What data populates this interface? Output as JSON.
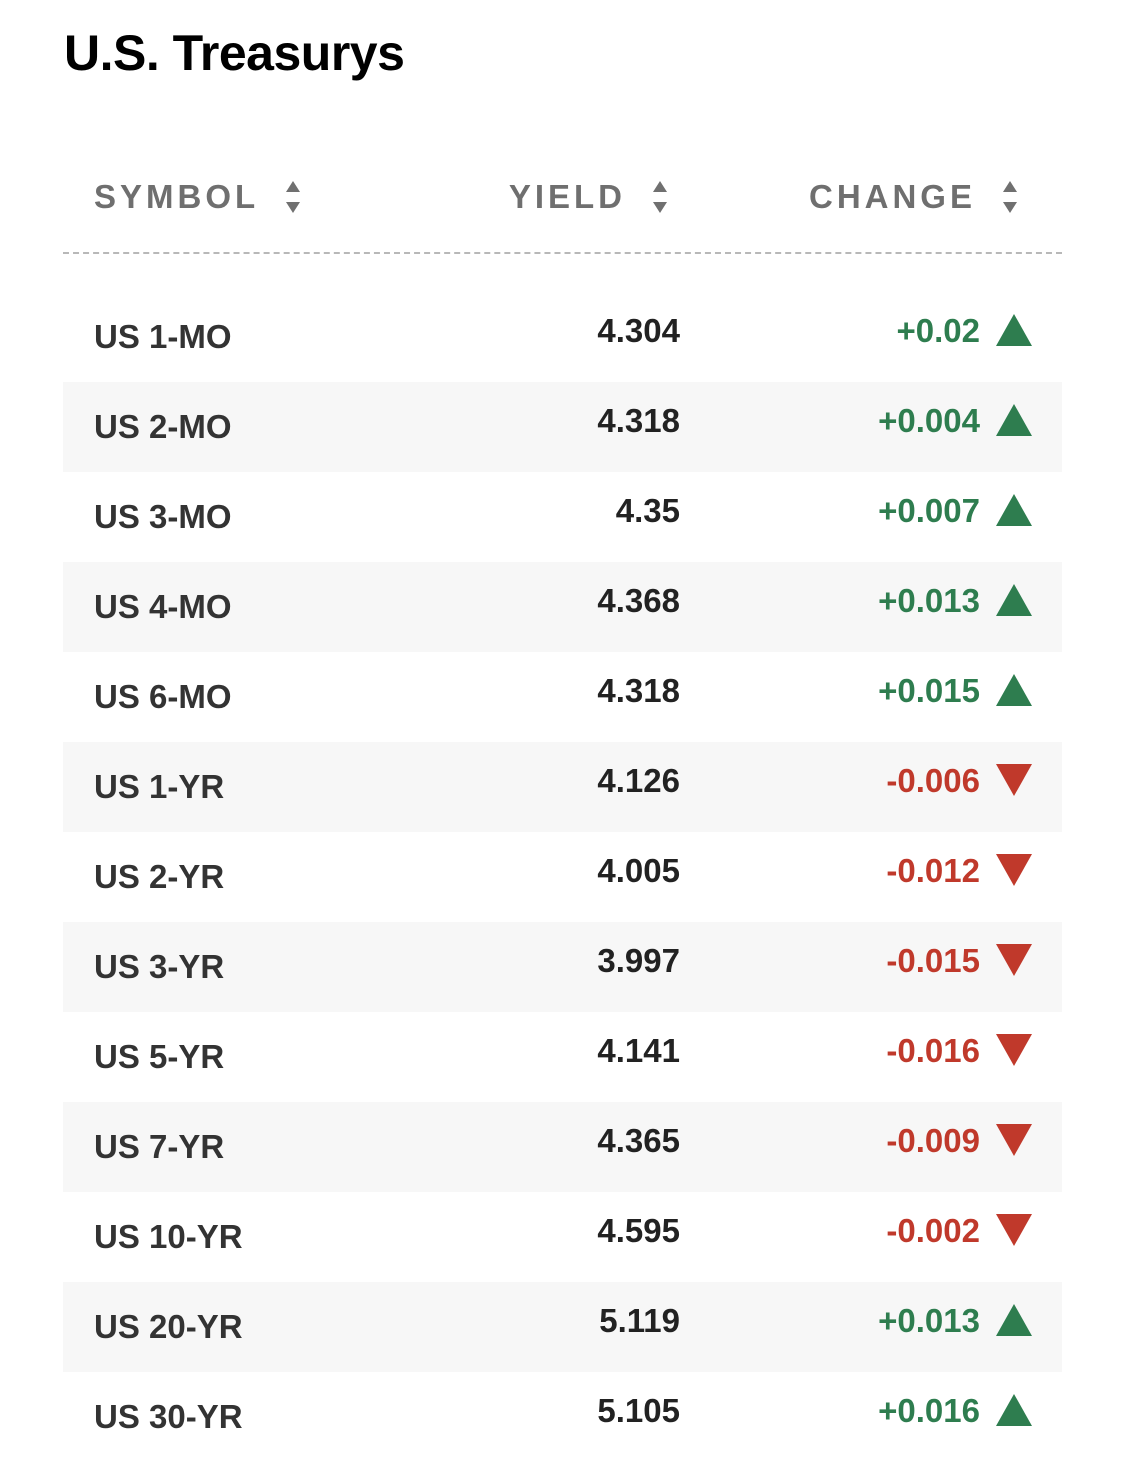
{
  "page": {
    "title": "U.S. Treasurys"
  },
  "table": {
    "headers": {
      "symbol": "SYMBOL",
      "yield": "YIELD",
      "change": "CHANGE"
    },
    "rows": [
      {
        "symbol": "US 1-MO",
        "yield": "4.304",
        "change": "+0.02",
        "direction": "up"
      },
      {
        "symbol": "US 2-MO",
        "yield": "4.318",
        "change": "+0.004",
        "direction": "up"
      },
      {
        "symbol": "US 3-MO",
        "yield": "4.35",
        "change": "+0.007",
        "direction": "up"
      },
      {
        "symbol": "US 4-MO",
        "yield": "4.368",
        "change": "+0.013",
        "direction": "up"
      },
      {
        "symbol": "US 6-MO",
        "yield": "4.318",
        "change": "+0.015",
        "direction": "up"
      },
      {
        "symbol": "US 1-YR",
        "yield": "4.126",
        "change": "-0.006",
        "direction": "down"
      },
      {
        "symbol": "US 2-YR",
        "yield": "4.005",
        "change": "-0.012",
        "direction": "down"
      },
      {
        "symbol": "US 3-YR",
        "yield": "3.997",
        "change": "-0.015",
        "direction": "down"
      },
      {
        "symbol": "US 5-YR",
        "yield": "4.141",
        "change": "-0.016",
        "direction": "down"
      },
      {
        "symbol": "US 7-YR",
        "yield": "4.365",
        "change": "-0.009",
        "direction": "down"
      },
      {
        "symbol": "US 10-YR",
        "yield": "4.595",
        "change": "-0.002",
        "direction": "down"
      },
      {
        "symbol": "US 20-YR",
        "yield": "5.119",
        "change": "+0.013",
        "direction": "up"
      },
      {
        "symbol": "US 30-YR",
        "yield": "5.105",
        "change": "+0.016",
        "direction": "up"
      }
    ]
  },
  "colors": {
    "positive": "#2e7d4f",
    "negative": "#c0392b",
    "header_text": "#6f6f6f",
    "row_alt_bg": "#f7f7f7"
  },
  "icons": {
    "sort": "sort-icon",
    "up": "triangle-up-icon",
    "down": "triangle-down-icon"
  }
}
